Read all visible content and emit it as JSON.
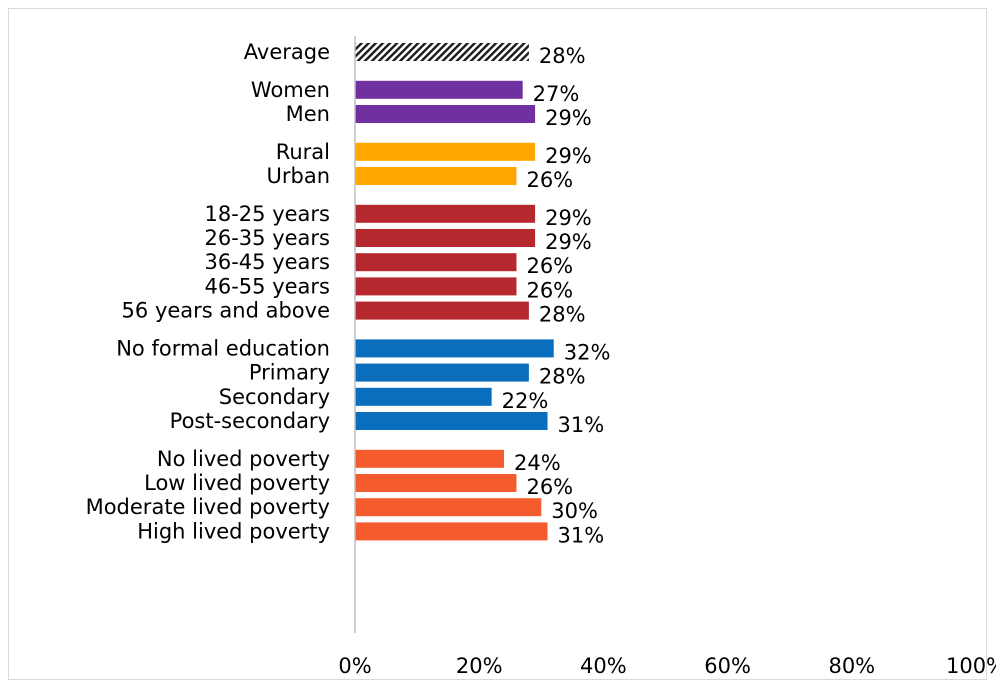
{
  "chart_data": {
    "type": "bar",
    "orientation": "horizontal",
    "title": "",
    "xlabel": "",
    "ylabel": "",
    "xlim": [
      0,
      100
    ],
    "x_ticks": [
      "0%",
      "20%",
      "40%",
      "60%",
      "80%",
      "100%"
    ],
    "grid": false,
    "legend": "none",
    "groups": [
      {
        "color": "#1a1a1a",
        "pattern": "diagonal-hatch",
        "items": [
          {
            "label": "Average",
            "value": 28,
            "value_label": "28%"
          }
        ]
      },
      {
        "color": "#7030a0",
        "items": [
          {
            "label": "Women",
            "value": 27,
            "value_label": "27%"
          },
          {
            "label": "Men",
            "value": 29,
            "value_label": "29%"
          }
        ]
      },
      {
        "color": "#ffa600",
        "items": [
          {
            "label": "Rural",
            "value": 29,
            "value_label": "29%"
          },
          {
            "label": "Urban",
            "value": 26,
            "value_label": "26%"
          }
        ]
      },
      {
        "color": "#b5282e",
        "items": [
          {
            "label": "18-25 years",
            "value": 29,
            "value_label": "29%"
          },
          {
            "label": "26-35 years",
            "value": 29,
            "value_label": "29%"
          },
          {
            "label": "36-45 years",
            "value": 26,
            "value_label": "26%"
          },
          {
            "label": "46-55 years",
            "value": 26,
            "value_label": "26%"
          },
          {
            "label": "56 years and above",
            "value": 28,
            "value_label": "28%"
          }
        ]
      },
      {
        "color": "#0a6ebd",
        "items": [
          {
            "label": "No formal education",
            "value": 32,
            "value_label": "32%"
          },
          {
            "label": "Primary",
            "value": 28,
            "value_label": "28%"
          },
          {
            "label": "Secondary",
            "value": 22,
            "value_label": "22%"
          },
          {
            "label": "Post-secondary",
            "value": 31,
            "value_label": "31%"
          }
        ]
      },
      {
        "color": "#f45b2d",
        "items": [
          {
            "label": "No lived poverty",
            "value": 24,
            "value_label": "24%"
          },
          {
            "label": "Low lived poverty",
            "value": 26,
            "value_label": "26%"
          },
          {
            "label": "Moderate lived poverty",
            "value": 30,
            "value_label": "30%"
          },
          {
            "label": "High lived poverty",
            "value": 31,
            "value_label": "31%"
          }
        ]
      }
    ]
  }
}
